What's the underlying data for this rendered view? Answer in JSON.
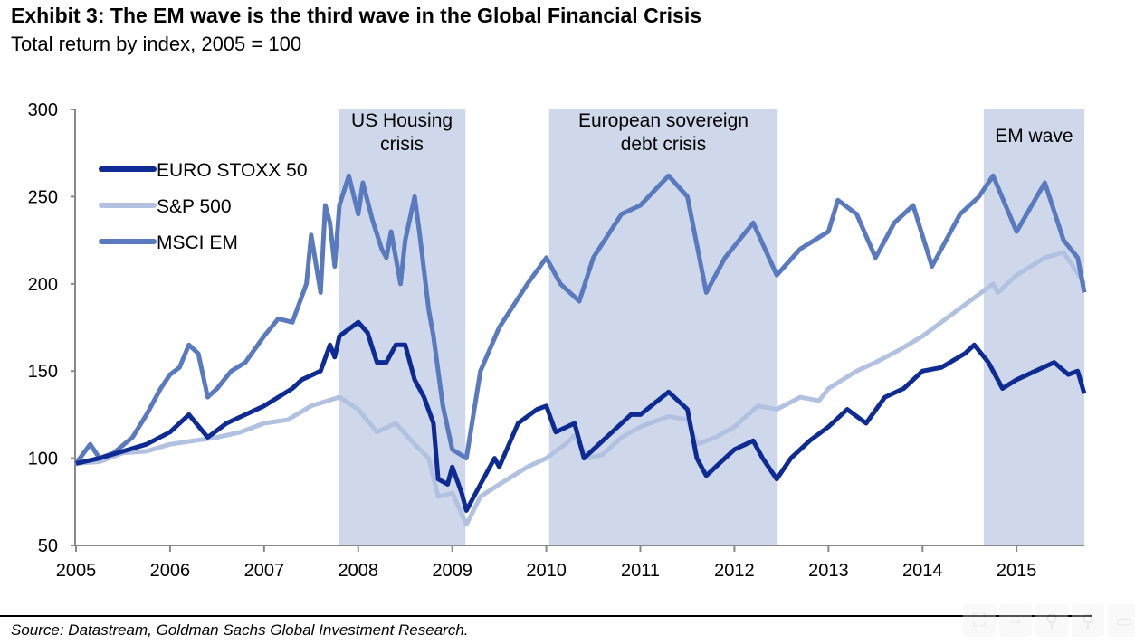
{
  "title": "Exhibit 3: The EM wave is the third wave in the Global Financial Crisis",
  "subtitle": "Total return by index, 2005 = 100",
  "source": "Source: Datastream, Goldman Sachs Global Investment Research.",
  "toolbar": [
    {
      "icon": "fit-icon",
      "glyph": "⛶"
    },
    {
      "icon": "pan-icon",
      "glyph": "⇔"
    },
    {
      "icon": "zoom-in-icon",
      "glyph": "⚲"
    },
    {
      "icon": "zoom-out-icon",
      "glyph": "⚲"
    },
    {
      "icon": "save-icon",
      "glyph": "▭"
    }
  ],
  "chart_data": {
    "type": "line",
    "title": "Exhibit 3: The EM wave is the third wave in the Global Financial Crisis",
    "ylabel": "Total return by index, 2005 = 100",
    "xlim": [
      2005,
      2015.72
    ],
    "ylim": [
      50,
      300
    ],
    "yticks": [
      50,
      100,
      150,
      200,
      250,
      300
    ],
    "xticks": [
      2005,
      2006,
      2007,
      2008,
      2009,
      2010,
      2011,
      2012,
      2013,
      2014,
      2015
    ],
    "legend_position": "top-left",
    "shaded_regions": [
      {
        "label": "US Housing crisis",
        "label_lines": [
          "US Housing",
          "crisis"
        ],
        "from": 2007.79,
        "to": 2009.14
      },
      {
        "label": "European sovereign debt crisis",
        "label_lines": [
          "European sovereign",
          "debt crisis"
        ],
        "from": 2010.03,
        "to": 2012.46
      },
      {
        "label": "EM wave",
        "label_lines": [
          "EM wave"
        ],
        "from": 2014.65,
        "to": 2015.72
      }
    ],
    "colors": {
      "shade": "#cfd8ea",
      "axis": "#888888"
    },
    "series": [
      {
        "name": "EURO STOXX 50",
        "color": "#0d2b92",
        "x": [
          2005,
          2005.25,
          2005.5,
          2005.75,
          2006,
          2006.2,
          2006.4,
          2006.6,
          2006.8,
          2007,
          2007.3,
          2007.4,
          2007.6,
          2007.7,
          2007.75,
          2007.8,
          2008,
          2008.1,
          2008.2,
          2008.3,
          2008.4,
          2008.5,
          2008.6,
          2008.7,
          2008.8,
          2008.85,
          2008.95,
          2009,
          2009.1,
          2009.15,
          2009.3,
          2009.45,
          2009.5,
          2009.7,
          2009.9,
          2010,
          2010.1,
          2010.3,
          2010.4,
          2010.5,
          2010.7,
          2010.9,
          2011,
          2011.3,
          2011.5,
          2011.6,
          2011.7,
          2011.9,
          2012,
          2012.2,
          2012.3,
          2012.45,
          2012.6,
          2012.8,
          2013,
          2013.2,
          2013.4,
          2013.6,
          2013.8,
          2014,
          2014.2,
          2014.45,
          2014.55,
          2014.7,
          2014.85,
          2015,
          2015.2,
          2015.4,
          2015.55,
          2015.65,
          2015.72
        ],
        "values": [
          97,
          100,
          104,
          108,
          115,
          125,
          112,
          120,
          125,
          130,
          140,
          145,
          150,
          165,
          158,
          170,
          178,
          172,
          155,
          155,
          165,
          165,
          145,
          135,
          120,
          88,
          85,
          95,
          80,
          70,
          85,
          100,
          95,
          120,
          128,
          130,
          115,
          120,
          100,
          105,
          115,
          125,
          125,
          138,
          128,
          100,
          90,
          100,
          105,
          110,
          100,
          88,
          100,
          110,
          118,
          128,
          120,
          135,
          140,
          150,
          152,
          160,
          165,
          155,
          140,
          145,
          150,
          155,
          148,
          150,
          137
        ]
      },
      {
        "name": "S&P 500",
        "color": "#b3c1e1",
        "x": [
          2005,
          2005.25,
          2005.5,
          2005.75,
          2006,
          2006.25,
          2006.5,
          2006.75,
          2007,
          2007.25,
          2007.5,
          2007.8,
          2008,
          2008.2,
          2008.4,
          2008.6,
          2008.75,
          2008.85,
          2009,
          2009.15,
          2009.3,
          2009.5,
          2009.8,
          2010,
          2010.2,
          2010.3,
          2010.45,
          2010.6,
          2010.8,
          2011,
          2011.3,
          2011.5,
          2011.6,
          2011.8,
          2012,
          2012.25,
          2012.45,
          2012.7,
          2012.9,
          2013,
          2013.3,
          2013.5,
          2013.75,
          2014,
          2014.2,
          2014.5,
          2014.75,
          2014.8,
          2015,
          2015.3,
          2015.5,
          2015.6,
          2015.72
        ],
        "values": [
          97,
          98,
          103,
          104,
          108,
          110,
          112,
          115,
          120,
          122,
          130,
          135,
          128,
          115,
          120,
          108,
          100,
          78,
          80,
          62,
          78,
          85,
          95,
          100,
          108,
          113,
          100,
          102,
          112,
          118,
          124,
          122,
          108,
          112,
          118,
          130,
          128,
          135,
          133,
          140,
          150,
          155,
          162,
          170,
          178,
          190,
          200,
          195,
          205,
          215,
          218,
          210,
          200
        ]
      },
      {
        "name": "MSCI EM",
        "color": "#5a7abf",
        "x": [
          2005,
          2005.15,
          2005.25,
          2005.4,
          2005.6,
          2005.75,
          2005.9,
          2006,
          2006.1,
          2006.2,
          2006.3,
          2006.4,
          2006.5,
          2006.65,
          2006.8,
          2007,
          2007.15,
          2007.3,
          2007.45,
          2007.5,
          2007.6,
          2007.65,
          2007.7,
          2007.75,
          2007.8,
          2007.9,
          2008,
          2008.05,
          2008.15,
          2008.25,
          2008.3,
          2008.35,
          2008.45,
          2008.5,
          2008.6,
          2008.65,
          2008.75,
          2008.8,
          2008.9,
          2009,
          2009.15,
          2009.3,
          2009.5,
          2009.8,
          2010,
          2010.15,
          2010.35,
          2010.5,
          2010.8,
          2011,
          2011.3,
          2011.5,
          2011.7,
          2011.9,
          2012.2,
          2012.45,
          2012.7,
          2013,
          2013.1,
          2013.3,
          2013.5,
          2013.7,
          2013.9,
          2014.1,
          2014.4,
          2014.6,
          2014.75,
          2015,
          2015.3,
          2015.5,
          2015.65,
          2015.72
        ],
        "values": [
          97,
          108,
          100,
          103,
          112,
          125,
          140,
          148,
          152,
          165,
          160,
          135,
          140,
          150,
          155,
          170,
          180,
          178,
          200,
          228,
          195,
          245,
          235,
          210,
          245,
          262,
          240,
          258,
          237,
          220,
          215,
          230,
          200,
          225,
          250,
          230,
          185,
          170,
          130,
          105,
          100,
          150,
          175,
          200,
          215,
          200,
          190,
          215,
          240,
          245,
          262,
          250,
          195,
          215,
          235,
          205,
          220,
          230,
          248,
          240,
          215,
          235,
          245,
          210,
          240,
          250,
          262,
          230,
          258,
          225,
          215,
          195
        ]
      }
    ]
  }
}
